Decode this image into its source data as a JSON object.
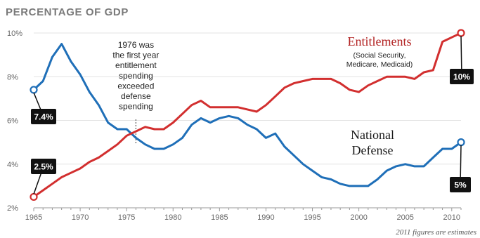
{
  "chart_data": {
    "type": "line",
    "title": "PERCENTAGE OF GDP",
    "xlabel": "",
    "ylabel": "",
    "xlim": [
      1965,
      2011
    ],
    "ylim": [
      2,
      10
    ],
    "x_ticks": [
      1965,
      1970,
      1975,
      1980,
      1985,
      1990,
      1995,
      2000,
      2005,
      2010
    ],
    "x_tick_labels": [
      "1965",
      "1970",
      "1975",
      "1980",
      "1985",
      "1990",
      "1995",
      "2000",
      "2005",
      "2010"
    ],
    "y_ticks": [
      2,
      4,
      6,
      8,
      10
    ],
    "y_tick_labels": [
      "2%",
      "4%",
      "6%",
      "8%",
      "10%"
    ],
    "grid": true,
    "x": [
      1965,
      1966,
      1967,
      1968,
      1969,
      1970,
      1971,
      1972,
      1973,
      1974,
      1975,
      1976,
      1977,
      1978,
      1979,
      1980,
      1981,
      1982,
      1983,
      1984,
      1985,
      1986,
      1987,
      1988,
      1989,
      1990,
      1991,
      1992,
      1993,
      1994,
      1995,
      1996,
      1997,
      1998,
      1999,
      2000,
      2001,
      2002,
      2003,
      2004,
      2005,
      2006,
      2007,
      2008,
      2009,
      2010,
      2011
    ],
    "series": [
      {
        "name": "Entitlements",
        "sublabel": "(Social Security, Medicare, Medicaid)",
        "color": "#d22f2f",
        "values": [
          2.5,
          2.8,
          3.1,
          3.4,
          3.6,
          3.8,
          4.1,
          4.3,
          4.6,
          4.9,
          5.3,
          5.5,
          5.7,
          5.6,
          5.6,
          5.9,
          6.3,
          6.7,
          6.9,
          6.6,
          6.6,
          6.6,
          6.6,
          6.5,
          6.4,
          6.7,
          7.1,
          7.5,
          7.7,
          7.8,
          7.9,
          7.9,
          7.9,
          7.7,
          7.4,
          7.3,
          7.6,
          7.8,
          8.0,
          8.0,
          8.0,
          7.9,
          8.2,
          8.3,
          9.6,
          9.8,
          10.0
        ],
        "start_label": "2.5%",
        "end_label": "10%"
      },
      {
        "name": "National Defense",
        "color": "#1f6fb8",
        "values": [
          7.4,
          7.8,
          8.9,
          9.5,
          8.7,
          8.1,
          7.3,
          6.7,
          5.9,
          5.6,
          5.6,
          5.2,
          4.9,
          4.7,
          4.7,
          4.9,
          5.2,
          5.8,
          6.1,
          5.9,
          6.1,
          6.2,
          6.1,
          5.8,
          5.6,
          5.2,
          5.4,
          4.8,
          4.4,
          4.0,
          3.7,
          3.4,
          3.3,
          3.1,
          3.0,
          3.0,
          3.0,
          3.3,
          3.7,
          3.9,
          4.0,
          3.9,
          3.9,
          4.3,
          4.7,
          4.7,
          5.0
        ],
        "start_label": "7.4%",
        "end_label": "5%"
      }
    ],
    "annotations": [
      {
        "x": 1976,
        "text": [
          "1976 was",
          "the first year",
          "entitlement",
          "spending",
          "exceeded",
          "defense",
          "spending"
        ]
      }
    ],
    "footnote": "2011 figures are estimates"
  }
}
